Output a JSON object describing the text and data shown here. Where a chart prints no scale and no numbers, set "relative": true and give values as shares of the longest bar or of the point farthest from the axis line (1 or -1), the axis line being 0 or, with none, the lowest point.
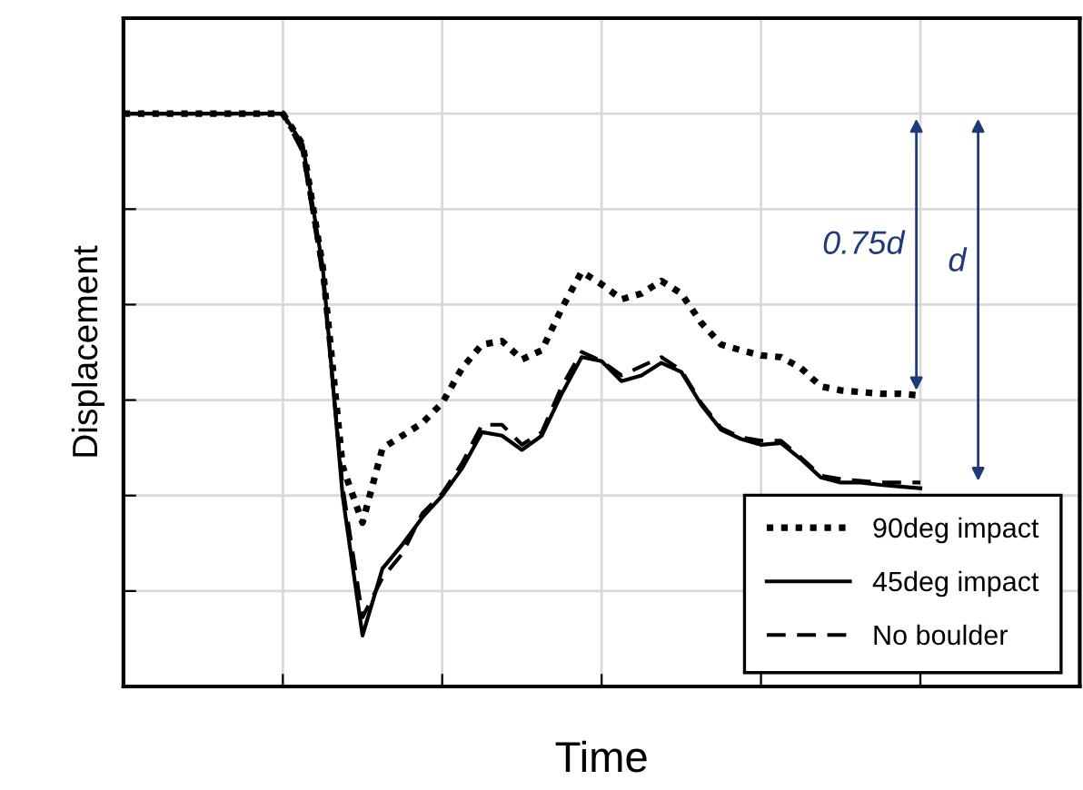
{
  "chart_data": {
    "type": "line",
    "relative": true,
    "xlabel": "Time",
    "ylabel": "Displacement",
    "grid": true,
    "legend": "bottom right",
    "categories": [
      null,
      null,
      null,
      null,
      null,
      null,
      null,
      null,
      null,
      null,
      null,
      null,
      null,
      null,
      null,
      null,
      null,
      null,
      null,
      null,
      null,
      null,
      null,
      null,
      null,
      null,
      null,
      null,
      null,
      null,
      null,
      null,
      null,
      null,
      null,
      null,
      null,
      null,
      null,
      null,
      null,
      null,
      null,
      null,
      null,
      null,
      null,
      null,
      null
    ],
    "series": [
      {
        "name": "90deg impact",
        "color": "#000000",
        "line_style": "dotted",
        "values": [
          1,
          1,
          1,
          1,
          1,
          1,
          1,
          1,
          1,
          0.946,
          0.733,
          0.384,
          0.286,
          0.416,
          0.438,
          0.46,
          0.495,
          0.556,
          0.597,
          0.603,
          0.571,
          0.587,
          0.66,
          0.724,
          0.702,
          0.676,
          0.686,
          0.708,
          0.686,
          0.635,
          0.597,
          0.587,
          0.578,
          0.575,
          0.556,
          0.524,
          0.517,
          0.514,
          0.511,
          0.511,
          0.508,
          null,
          null,
          null,
          null,
          null,
          null,
          null,
          null
        ]
      },
      {
        "name": "45deg impact",
        "color": "#000000",
        "line_style": "solid",
        "values": [
          1,
          1,
          1,
          1,
          1,
          1,
          1,
          1,
          1,
          0.946,
          0.733,
          0.333,
          0.089,
          0.206,
          0.248,
          0.295,
          0.333,
          0.381,
          0.444,
          0.438,
          0.413,
          0.438,
          0.511,
          0.575,
          0.568,
          0.533,
          0.543,
          0.565,
          0.549,
          0.492,
          0.448,
          0.432,
          0.422,
          0.425,
          0.397,
          0.365,
          0.356,
          0.356,
          0.352,
          0.349,
          0.346,
          null,
          null,
          null,
          null,
          null,
          null,
          null,
          null
        ]
      },
      {
        "name": "No boulder",
        "color": "#000000",
        "line_style": "dashed",
        "values": [
          1,
          1,
          1,
          1,
          1,
          1,
          1,
          1,
          1,
          0.933,
          0.717,
          0.349,
          0.121,
          0.19,
          0.232,
          0.302,
          0.337,
          0.39,
          0.457,
          0.457,
          0.422,
          0.444,
          0.524,
          0.584,
          0.568,
          0.543,
          0.559,
          0.575,
          0.552,
          0.495,
          0.451,
          0.435,
          0.429,
          0.429,
          0.4,
          0.368,
          0.362,
          0.359,
          0.356,
          0.356,
          0.356,
          null,
          null,
          null,
          null,
          null,
          null,
          null,
          null
        ]
      }
    ],
    "annotations": [
      "0.75d",
      "d"
    ]
  }
}
